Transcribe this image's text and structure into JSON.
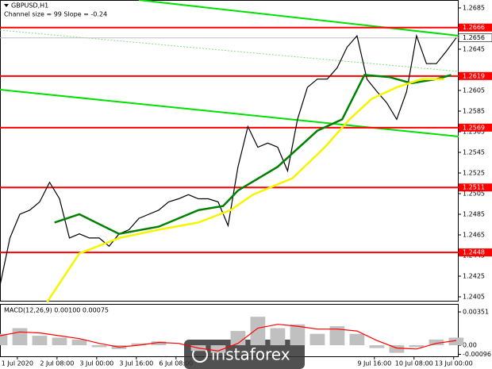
{
  "chart_data": [
    {
      "type": "line",
      "title": "GBPUSD,H1",
      "subtitle": "Channel size = 99 Slope = -0.24",
      "watermark": "instaforex",
      "x": [
        0,
        4,
        8,
        12,
        16,
        20,
        24,
        28,
        32,
        36,
        40,
        44,
        48,
        52,
        56,
        60,
        64,
        68,
        72,
        76,
        80,
        84,
        88,
        92,
        96,
        100,
        104,
        108,
        112,
        116,
        120,
        124,
        128,
        132,
        136,
        140,
        144,
        148,
        152,
        156,
        160,
        164,
        168,
        172,
        176,
        180,
        184
      ],
      "series": [
        {
          "color": "#000000",
          "values": [
            1.2416,
            1.2462,
            1.2485,
            1.2489,
            1.2497,
            1.2516,
            1.25,
            1.2462,
            1.2466,
            1.2462,
            1.2462,
            1.2454,
            1.2466,
            1.247,
            1.2481,
            1.2485,
            1.2489,
            1.2497,
            1.25,
            1.2504,
            1.25,
            1.25,
            1.2497,
            1.2474,
            1.2531,
            1.257,
            1.255,
            1.2554,
            1.255,
            1.2527,
            1.2577,
            1.2608,
            1.2616,
            1.2616,
            1.2627,
            1.2647,
            1.2658,
            1.2616,
            1.2604,
            1.2593,
            1.2577,
            1.2604,
            1.2658,
            1.2631,
            1.2631,
            1.2643,
            1.2656
          ]
        },
        {
          "color": "#008000",
          "x": [
            22,
            32,
            48,
            64,
            80,
            90,
            96,
            112,
            128,
            138,
            147,
            157,
            166,
            176,
            182
          ],
          "values": [
            1.2477,
            1.2485,
            1.2466,
            1.2473,
            1.2489,
            1.2493,
            1.2508,
            1.2531,
            1.2566,
            1.2577,
            1.262,
            1.2618,
            1.2612,
            1.2616,
            1.262
          ]
        },
        {
          "color": "#f5f500",
          "x": [
            19,
            32,
            48,
            64,
            80,
            93,
            102,
            118,
            131,
            141,
            150,
            160,
            170,
            179
          ],
          "values": [
            1.24,
            1.2447,
            1.2462,
            1.247,
            1.2477,
            1.2489,
            1.2504,
            1.252,
            1.255,
            1.2577,
            1.2597,
            1.2608,
            1.2616,
            1.2616
          ]
        }
      ],
      "channel": [
        {
          "color": "#00e000",
          "x": [
            56,
            185
          ],
          "y": [
            1.26927,
            1.26581
          ]
        },
        {
          "color": "#00e000",
          "x": [
            0,
            185
          ],
          "y": [
            1.26058,
            1.25604
          ]
        },
        {
          "color": "#7fe07f",
          "x": [
            0,
            185
          ],
          "y": [
            1.26635,
            1.26235
          ]
        }
      ],
      "levels": [
        {
          "value": 1.2666,
          "color": "#ff0000"
        },
        {
          "value": 1.2619,
          "color": "#ff0000"
        },
        {
          "value": 1.2569,
          "color": "#ff0000"
        },
        {
          "value": 1.2511,
          "color": "#ff0000"
        },
        {
          "value": 1.2448,
          "color": "#ff0000"
        }
      ],
      "current_price": 1.2656,
      "xlim": [
        0,
        185
      ],
      "ylim": [
        1.24004,
        1.26927
      ],
      "yticks": [
        1.2685,
        1.2645,
        1.2605,
        1.2585,
        1.2565,
        1.2545,
        1.2525,
        1.2505,
        1.2485,
        1.2465,
        1.2445,
        1.2425,
        1.2405
      ],
      "xticks": [
        {
          "value": 7,
          "label": "1 Jul 2020"
        },
        {
          "value": 23,
          "label": "2 Jul 08:00"
        },
        {
          "value": 39,
          "label": "3 Jul 00:00"
        },
        {
          "value": 55,
          "label": "3 Jul 16:00"
        },
        {
          "value": 71,
          "label": "6 Jul 08:00"
        },
        {
          "value": 151,
          "label": "9 Jul 16:00"
        },
        {
          "value": 167,
          "label": "10 Jul 08:00"
        },
        {
          "value": 183,
          "label": "13 Jul 00:00"
        }
      ]
    },
    {
      "type": "macd",
      "label": "MACD(12,26,9) 0.00100 0.00075",
      "x": [
        0,
        8,
        16,
        24,
        32,
        40,
        48,
        56,
        64,
        72,
        80,
        88,
        96,
        104,
        112,
        120,
        128,
        136,
        144,
        152,
        160,
        168,
        176,
        184
      ],
      "series": [
        {
          "type": "bar",
          "color": "#c0c0c0",
          "values": [
            0.0012,
            0.0018,
            0.001,
            0.0008,
            0.0006,
            -0.0002,
            -0.0004,
            0.0002,
            0.0004,
            0,
            -0.0006,
            -0.0008,
            0.0015,
            0.003,
            0.0018,
            0.0022,
            0.0012,
            0.002,
            0.0012,
            -0.0003,
            -0.0008,
            -0.0002,
            0.0006,
            0.0008
          ]
        },
        {
          "type": "line",
          "color": "#ff0000",
          "values": [
            0.001,
            0.0014,
            0.0013,
            0.001,
            0.0007,
            0.0002,
            -0.0002,
            0,
            0.0003,
            0.0002,
            -0.0003,
            -0.0006,
            0.0002,
            0.0018,
            0.0022,
            0.002,
            0.0017,
            0.0017,
            0.0015,
            0.0005,
            -0.0003,
            -0.0004,
            0.0002,
            0.0005
          ]
        }
      ],
      "xlim": [
        0,
        185
      ],
      "ylim": [
        -0.00125,
        0.00435
      ],
      "yticks": [
        0.00351,
        {
          "value": 0,
          "label": "0.00"
        },
        -0.00096
      ]
    }
  ]
}
